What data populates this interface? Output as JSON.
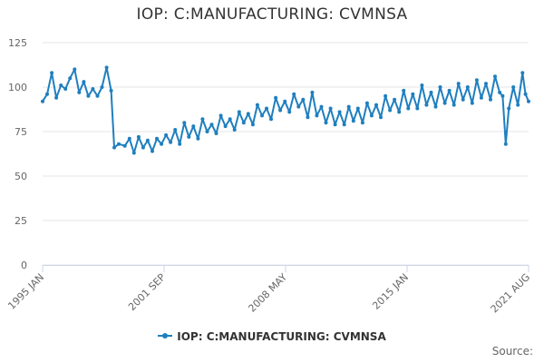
{
  "chart_data": {
    "type": "line",
    "title": "IOP: C:MANUFACTURING: CVMNSA",
    "xlabel": "",
    "ylabel": "",
    "ylim": [
      0,
      125
    ],
    "yticks": [
      0,
      25,
      50,
      75,
      100,
      125
    ],
    "xrange": [
      "1995-01",
      "2021-08"
    ],
    "xticks": [
      "1995 JAN",
      "2001 SEP",
      "2008 MAY",
      "2015 JAN",
      "2021 AUG"
    ],
    "grid": true,
    "legend_position": "bottom-center",
    "color": "#1f7fbf",
    "series": [
      {
        "name": "IOP: C:MANUFACTURING: CVMNSA",
        "points": [
          [
            "1995-01",
            92
          ],
          [
            "1995-04",
            96
          ],
          [
            "1995-07",
            108
          ],
          [
            "1995-10",
            94
          ],
          [
            "1996-01",
            101
          ],
          [
            "1996-04",
            99
          ],
          [
            "1996-07",
            105
          ],
          [
            "1996-10",
            110
          ],
          [
            "1997-01",
            97
          ],
          [
            "1997-04",
            103
          ],
          [
            "1997-07",
            95
          ],
          [
            "1997-10",
            99
          ],
          [
            "1998-01",
            95
          ],
          [
            "1998-04",
            100
          ],
          [
            "1998-07",
            111
          ],
          [
            "1998-10",
            98
          ],
          [
            "1998-12",
            66
          ],
          [
            "1999-03",
            68
          ],
          [
            "1999-07",
            67
          ],
          [
            "1999-10",
            71
          ],
          [
            "2000-01",
            63
          ],
          [
            "2000-04",
            72
          ],
          [
            "2000-07",
            66
          ],
          [
            "2000-10",
            70
          ],
          [
            "2001-01",
            64
          ],
          [
            "2001-04",
            71
          ],
          [
            "2001-07",
            68
          ],
          [
            "2001-10",
            73
          ],
          [
            "2002-01",
            69
          ],
          [
            "2002-04",
            76
          ],
          [
            "2002-07",
            68
          ],
          [
            "2002-10",
            80
          ],
          [
            "2003-01",
            72
          ],
          [
            "2003-04",
            78
          ],
          [
            "2003-07",
            71
          ],
          [
            "2003-10",
            82
          ],
          [
            "2004-01",
            75
          ],
          [
            "2004-04",
            79
          ],
          [
            "2004-07",
            74
          ],
          [
            "2004-10",
            84
          ],
          [
            "2005-01",
            78
          ],
          [
            "2005-04",
            82
          ],
          [
            "2005-07",
            76
          ],
          [
            "2005-10",
            86
          ],
          [
            "2006-01",
            80
          ],
          [
            "2006-04",
            85
          ],
          [
            "2006-07",
            79
          ],
          [
            "2006-10",
            90
          ],
          [
            "2007-01",
            84
          ],
          [
            "2007-04",
            88
          ],
          [
            "2007-07",
            82
          ],
          [
            "2007-10",
            94
          ],
          [
            "2008-01",
            87
          ],
          [
            "2008-04",
            92
          ],
          [
            "2008-07",
            86
          ],
          [
            "2008-10",
            96
          ],
          [
            "2009-01",
            89
          ],
          [
            "2009-04",
            93
          ],
          [
            "2009-07",
            83
          ],
          [
            "2009-10",
            97
          ],
          [
            "2010-01",
            84
          ],
          [
            "2010-04",
            89
          ],
          [
            "2010-07",
            80
          ],
          [
            "2010-10",
            88
          ],
          [
            "2011-01",
            79
          ],
          [
            "2011-04",
            86
          ],
          [
            "2011-07",
            79
          ],
          [
            "2011-10",
            89
          ],
          [
            "2012-01",
            81
          ],
          [
            "2012-04",
            88
          ],
          [
            "2012-07",
            80
          ],
          [
            "2012-10",
            91
          ],
          [
            "2013-01",
            84
          ],
          [
            "2013-04",
            90
          ],
          [
            "2013-07",
            83
          ],
          [
            "2013-10",
            95
          ],
          [
            "2014-01",
            87
          ],
          [
            "2014-04",
            93
          ],
          [
            "2014-07",
            86
          ],
          [
            "2014-10",
            98
          ],
          [
            "2015-01",
            88
          ],
          [
            "2015-04",
            96
          ],
          [
            "2015-07",
            88
          ],
          [
            "2015-10",
            101
          ],
          [
            "2016-01",
            90
          ],
          [
            "2016-04",
            97
          ],
          [
            "2016-07",
            89
          ],
          [
            "2016-10",
            100
          ],
          [
            "2017-01",
            91
          ],
          [
            "2017-04",
            98
          ],
          [
            "2017-07",
            90
          ],
          [
            "2017-10",
            102
          ],
          [
            "2018-01",
            93
          ],
          [
            "2018-04",
            100
          ],
          [
            "2018-07",
            91
          ],
          [
            "2018-10",
            104
          ],
          [
            "2019-01",
            94
          ],
          [
            "2019-04",
            102
          ],
          [
            "2019-07",
            93
          ],
          [
            "2019-10",
            106
          ],
          [
            "2020-01",
            97
          ],
          [
            "2020-03",
            95
          ],
          [
            "2020-05",
            68
          ],
          [
            "2020-07",
            88
          ],
          [
            "2020-10",
            100
          ],
          [
            "2021-01",
            90
          ],
          [
            "2021-04",
            108
          ],
          [
            "2021-06",
            96
          ],
          [
            "2021-08",
            92
          ]
        ]
      }
    ],
    "source_label": "Source:"
  }
}
